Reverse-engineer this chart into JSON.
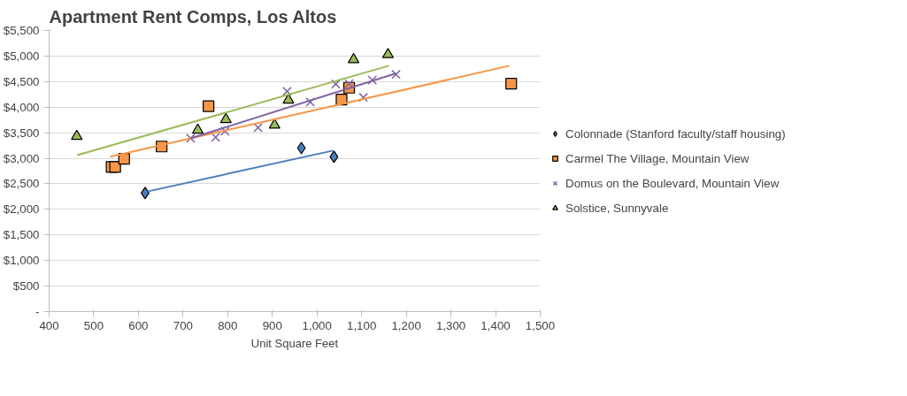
{
  "chart_data": {
    "type": "scatter",
    "title": "Apartment Rent Comps, Los Altos",
    "xlabel": "Unit Square Feet",
    "xlim": [
      400,
      1500
    ],
    "xticks": [
      400,
      500,
      600,
      700,
      800,
      900,
      {
        "value": 1000,
        "label": "1,000"
      },
      {
        "value": 1100,
        "label": "1,100"
      },
      {
        "value": 1200,
        "label": "1,200"
      },
      {
        "value": 1300,
        "label": "1,300"
      },
      {
        "value": 1400,
        "label": "1,400"
      },
      {
        "value": 1500,
        "label": "1,500"
      }
    ],
    "ylim": [
      0,
      5500
    ],
    "yticks": [
      {
        "value": 0,
        "label": "-"
      },
      {
        "value": 500,
        "label": "$500"
      },
      {
        "value": 1000,
        "label": "$1,000"
      },
      {
        "value": 1500,
        "label": "$1,500"
      },
      {
        "value": 2000,
        "label": "$2,000"
      },
      {
        "value": 2500,
        "label": "$2,500"
      },
      {
        "value": 3000,
        "label": "$3,000"
      },
      {
        "value": 3500,
        "label": "$3,500"
      },
      {
        "value": 4000,
        "label": "$4,000"
      },
      {
        "value": 4500,
        "label": "$4,500"
      },
      {
        "value": 5000,
        "label": "$5,000"
      },
      {
        "value": 5500,
        "label": "$5,500"
      }
    ],
    "grid": "y",
    "legend": "right",
    "series": [
      {
        "name": "Colonnade (Stanford faculty/staff housing)",
        "color": "#4a7ebb",
        "marker": "diamond",
        "x": [
          615,
          965,
          1038
        ],
        "values": [
          2320,
          3200,
          3030
        ]
      },
      {
        "name": "Carmel The Village, Mountain View",
        "color": "#f79646",
        "marker": "square",
        "x": [
          540,
          548,
          568,
          652,
          757,
          1055,
          1072,
          1435
        ],
        "values": [
          2830,
          2830,
          2990,
          3230,
          4020,
          4150,
          4380,
          4460
        ]
      },
      {
        "name": "Domus on the Boulevard, Mountain View",
        "color": "#8064a2",
        "marker": "cross",
        "x": [
          717,
          773,
          794,
          868,
          933,
          985,
          1042,
          1072,
          1104,
          1124,
          1177
        ],
        "values": [
          3390,
          3410,
          3530,
          3600,
          4310,
          4100,
          4450,
          4460,
          4190,
          4530,
          4640
        ]
      },
      {
        "name": "Solstice, Sunnyvale",
        "color": "#9bbb59",
        "marker": "triangle",
        "x": [
          462,
          733,
          796,
          905,
          936,
          1082,
          1159
        ],
        "values": [
          3430,
          3550,
          3760,
          3650,
          4140,
          4930,
          5030
        ]
      },
      {
        "type": "line",
        "color": "#4a7ebb",
        "x": [
          620,
          1036
        ],
        "values": [
          2350,
          3150
        ]
      },
      {
        "type": "line",
        "color": "#f79646",
        "x": [
          537,
          1431
        ],
        "values": [
          3030,
          4810
        ]
      },
      {
        "type": "line",
        "color": "#8064a2",
        "x": [
          717,
          1177
        ],
        "values": [
          3390,
          4660
        ]
      },
      {
        "type": "line",
        "color": "#9bbb59",
        "x": [
          463,
          1161
        ],
        "values": [
          3060,
          4810
        ]
      }
    ]
  }
}
